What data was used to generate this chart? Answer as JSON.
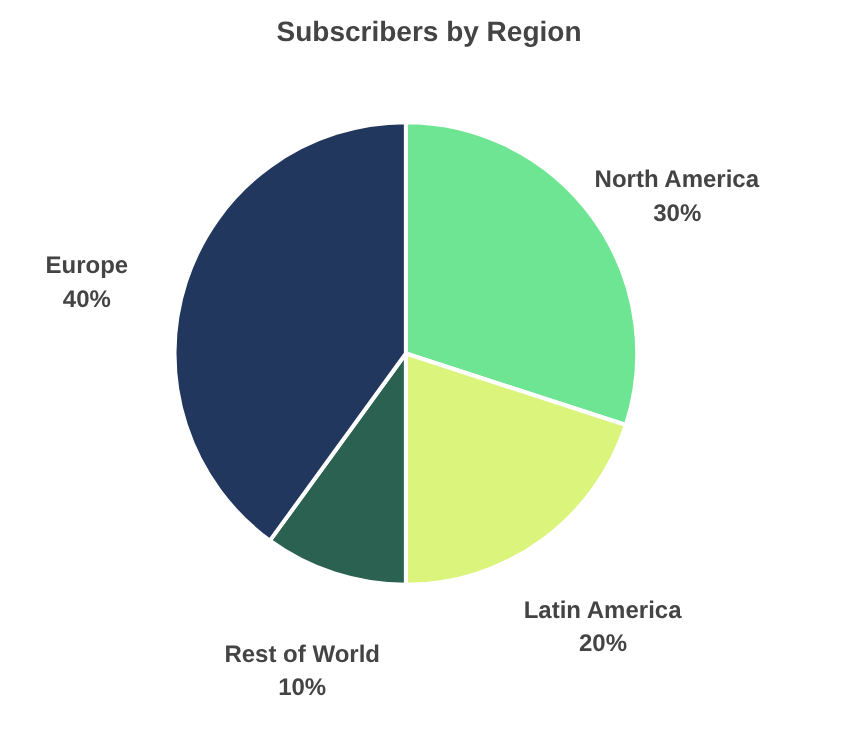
{
  "chart_data": {
    "type": "pie",
    "title": "Subscribers by Region",
    "categories": [
      "North America",
      "Latin America",
      "Rest of World",
      "Europe"
    ],
    "values": [
      30,
      20,
      10,
      40
    ],
    "value_labels": [
      "30%",
      "20%",
      "10%",
      "40%"
    ],
    "colors": [
      "#6ee592",
      "#dbf47c",
      "#2a6150",
      "#22375e"
    ]
  }
}
